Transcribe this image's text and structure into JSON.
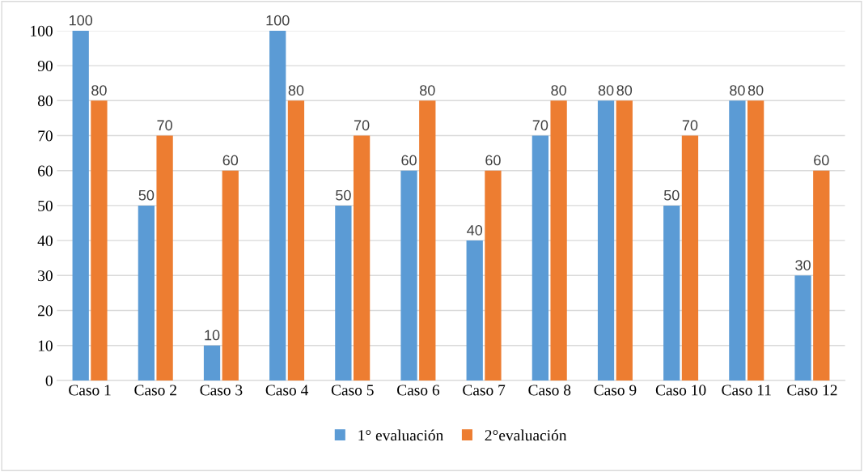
{
  "chart_data": {
    "type": "bar",
    "categories": [
      "Caso 1",
      "Caso 2",
      "Caso 3",
      "Caso 4",
      "Caso 5",
      "Caso 6",
      "Caso 7",
      "Caso 8",
      "Caso 9",
      "Caso 10",
      "Caso 11",
      "Caso 12"
    ],
    "series": [
      {
        "name": "1° evaluación",
        "color": "#5b9bd5",
        "values": [
          100,
          50,
          10,
          100,
          50,
          60,
          40,
          70,
          80,
          50,
          80,
          30
        ]
      },
      {
        "name": "2°evaluación",
        "color": "#ed7d31",
        "values": [
          80,
          70,
          60,
          80,
          70,
          80,
          60,
          80,
          80,
          70,
          80,
          60
        ]
      }
    ],
    "ylim": [
      0,
      100
    ],
    "yticks": [
      0,
      10,
      20,
      30,
      40,
      50,
      60,
      70,
      80,
      90,
      100
    ],
    "grid": "y",
    "legend": "bottom",
    "data_labels": true
  }
}
